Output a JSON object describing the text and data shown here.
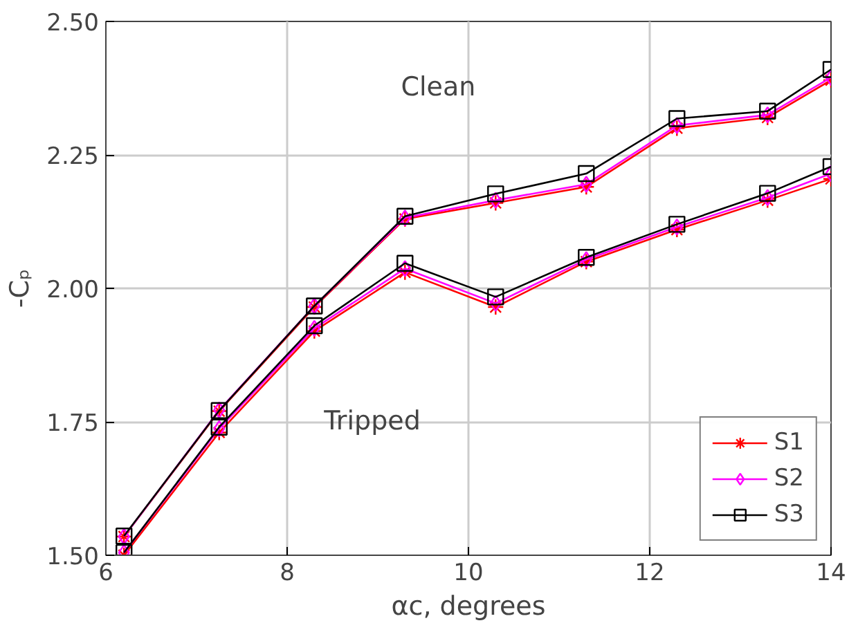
{
  "chart_data": {
    "type": "line",
    "xlabel": "αc, degrees",
    "ylabel": "-Cₚ",
    "xlim": [
      6,
      14
    ],
    "ylim": [
      1.5,
      2.5
    ],
    "xticks": [
      6,
      8,
      10,
      12,
      14
    ],
    "yticks": [
      {
        "value": 1.5,
        "label": "1.50"
      },
      {
        "value": 1.75,
        "label": "1.75"
      },
      {
        "value": 2.0,
        "label": "2.00"
      },
      {
        "value": 2.25,
        "label": "2.25"
      },
      {
        "value": 2.5,
        "label": "2.50"
      }
    ],
    "x": [
      6.2,
      7.25,
      8.3,
      9.3,
      10.3,
      11.3,
      12.3,
      13.3,
      14
    ],
    "series": [
      {
        "name": "S1",
        "color": "#ff0000",
        "marker": "cross",
        "values": [
          1.535,
          1.77,
          1.965,
          2.13,
          2.16,
          2.19,
          2.3,
          2.32,
          2.39
        ]
      },
      {
        "name": "S2",
        "color": "#ff00ff",
        "marker": "diamond",
        "values": [
          1.535,
          1.772,
          1.967,
          2.132,
          2.165,
          2.195,
          2.305,
          2.325,
          2.395
        ]
      },
      {
        "name": "S3",
        "color": "#000000",
        "marker": "square",
        "values": [
          1.536,
          1.771,
          1.967,
          2.135,
          2.177,
          2.215,
          2.318,
          2.332,
          2.41
        ]
      },
      {
        "color": "#ff0000",
        "marker": "cross",
        "values": [
          1.5,
          1.73,
          1.92,
          2.03,
          1.965,
          2.05,
          2.11,
          2.165,
          2.205
        ]
      },
      {
        "color": "#ff00ff",
        "marker": "diamond",
        "values": [
          1.505,
          1.737,
          1.925,
          2.037,
          1.972,
          2.054,
          2.115,
          2.17,
          2.215
        ]
      },
      {
        "color": "#000000",
        "marker": "square",
        "values": [
          1.505,
          1.74,
          1.93,
          2.047,
          1.984,
          2.058,
          2.12,
          2.178,
          2.228
        ]
      }
    ],
    "annotations": [
      "Clean",
      "Tripped"
    ],
    "grid": true,
    "legend": "bottom right"
  }
}
